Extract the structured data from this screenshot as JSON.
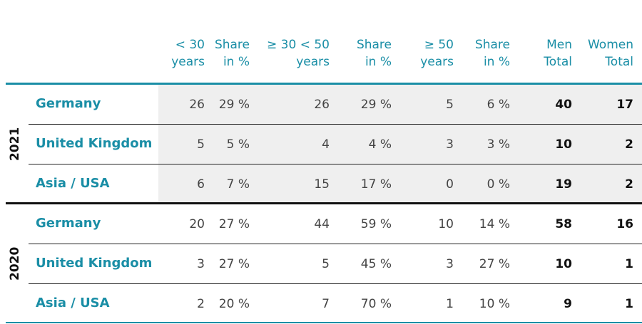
{
  "header": {
    "columns": [
      [
        "< 30",
        "years"
      ],
      [
        "Share",
        "in %"
      ],
      [
        "≥ 30 < 50",
        "years"
      ],
      [
        "Share",
        "in %"
      ],
      [
        "≥ 50",
        "years"
      ],
      [
        "Share",
        "in %"
      ],
      [
        "Men",
        "Total"
      ],
      [
        "Women",
        "Total"
      ]
    ]
  },
  "groups": [
    {
      "year": "2021",
      "rows": [
        {
          "country": "Germany",
          "cells": [
            "26",
            "29 %",
            "26",
            "29 %",
            "5",
            "6 %",
            "40",
            "17"
          ]
        },
        {
          "country": "United Kingdom",
          "cells": [
            "5",
            "5 %",
            "4",
            "4 %",
            "3",
            "3 %",
            "10",
            "2"
          ]
        },
        {
          "country": "Asia / USA",
          "cells": [
            "6",
            "7 %",
            "15",
            "17 %",
            "0",
            "0 %",
            "19",
            "2"
          ]
        }
      ]
    },
    {
      "year": "2020",
      "rows": [
        {
          "country": "Germany",
          "cells": [
            "20",
            "27 %",
            "44",
            "59 %",
            "10",
            "14 %",
            "58",
            "16"
          ]
        },
        {
          "country": "United Kingdom",
          "cells": [
            "3",
            "27 %",
            "5",
            "45 %",
            "3",
            "27 %",
            "10",
            "1"
          ]
        },
        {
          "country": "Asia / USA",
          "cells": [
            "2",
            "20 %",
            "7",
            "70 %",
            "1",
            "10 %",
            "9",
            "1"
          ]
        }
      ]
    }
  ]
}
